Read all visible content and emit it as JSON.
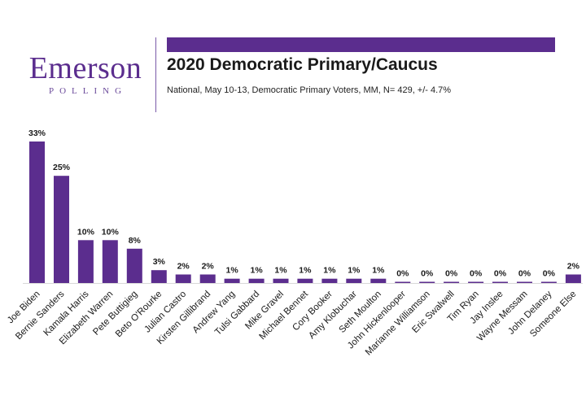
{
  "brand": {
    "name": "Emerson",
    "sub": "POLLING",
    "color": "#5b2d8e"
  },
  "chart_data": {
    "type": "bar",
    "title": "2020 Democratic Primary/Caucus",
    "subtitle": "National, May 10-13, Democratic Primary Voters, MM, N= 429, +/- 4.7%",
    "categories": [
      "Joe Biden",
      "Bernie Sanders",
      "Kamala Harris",
      "Elizabeth Warren",
      "Pete Buttigieg",
      "Beto O'Rourke",
      "Julian Castro",
      "Kirsten Gillibrand",
      "Andrew Yang",
      "Tulsi Gabbard",
      "Mike Gravel",
      "Michael Bennet",
      "Cory Booker",
      "Amy Klobuchar",
      "Seth Moulton",
      "John Hickenlooper",
      "Marianne Williamson",
      "Eric Swalwell",
      "Tim Ryan",
      "Jay Inslee",
      "Wayne Messam",
      "John Delaney",
      "Someone Else"
    ],
    "values": [
      33,
      25,
      10,
      10,
      8,
      3,
      2,
      2,
      1,
      1,
      1,
      1,
      1,
      1,
      1,
      0,
      0,
      0,
      0,
      0,
      0,
      0,
      2
    ],
    "data_labels": [
      "33%",
      "25%",
      "10%",
      "10%",
      "8%",
      "3%",
      "2%",
      "2%",
      "1%",
      "1%",
      "1%",
      "1%",
      "1%",
      "1%",
      "1%",
      "0%",
      "0%",
      "0%",
      "0%",
      "0%",
      "0%",
      "0%",
      "2%"
    ],
    "bar_color": "#5b2d8e",
    "ylim": [
      0,
      33
    ],
    "grid": false,
    "legend": "none"
  }
}
